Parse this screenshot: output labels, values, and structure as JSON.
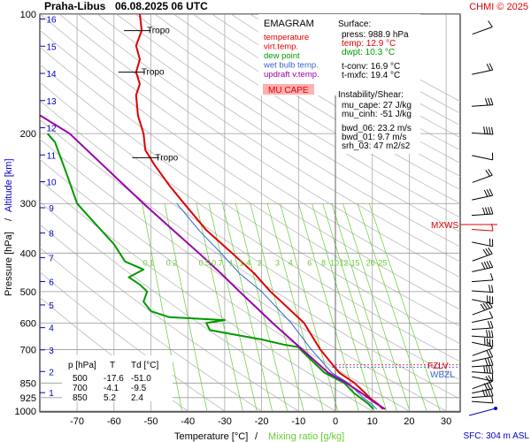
{
  "header": {
    "station": "Praha-Libus",
    "datetime": "06.08.2025 06 UTC",
    "copyright": "CHMI © 2025"
  },
  "legend": {
    "title": "EMAGRAM",
    "items": [
      {
        "label": "temperature",
        "color": "#e00000"
      },
      {
        "label": "virt.temp.",
        "color": "#e00000"
      },
      {
        "label": "dew point",
        "color": "#009900"
      },
      {
        "label": "wet bulb temp.",
        "color": "#3366cc"
      },
      {
        "label": "updraft v.temp.",
        "color": "#9900aa"
      }
    ],
    "mu_cape_badge": "MU CAPE",
    "mu_cape_color": "#ffb0b0"
  },
  "surface": {
    "title": "Surface:",
    "press": "press: 988.9 hPa",
    "temp": "temp: 12.9 °C",
    "dwpt": "dwpt: 10.3 °C",
    "tconv": "t-conv: 16.9 °C",
    "tmxfc": "t-mxfc: 19.4 °C"
  },
  "instability": {
    "title": "Instability/Shear:",
    "mu_cape": "mu_cape: 27 J/kg",
    "mu_cinh": "mu_cinh: -51 J/kg",
    "bwd_06": "bwd_06: 23.2 m/s",
    "bwd_01": "bwd_01: 9.7 m/s",
    "srh_03": "srh_03: 47 m2/s2"
  },
  "level_table": {
    "headers": [
      "p [hPa]",
      "T",
      "Td [°C]"
    ],
    "rows": [
      [
        "500",
        "-17.6",
        "-51.0"
      ],
      [
        "700",
        "-4.1",
        "-9.5"
      ],
      [
        "850",
        "5.2",
        "2.4"
      ]
    ]
  },
  "labels": {
    "tropo": "Tropo",
    "mxws": "MXWS",
    "fzlv": "FZLV",
    "wbzl": "WBZL",
    "sfc": "SFC: 304 m ASL",
    "ylabel_pressure": "Pressure [hPa]",
    "ylabel_sep": "/",
    "ylabel_altitude": "Altitude [km]",
    "xlabel_temp": "Temperature [°C]",
    "xlabel_sep": "/",
    "xlabel_mix": "Mixing ratio [g/kg]"
  },
  "colors": {
    "temperature": "#e00000",
    "dewpoint": "#009900",
    "wetbulb": "#3366cc",
    "parcel": "#9900aa",
    "mixing": "#66cc33",
    "altitude": "#0000cc",
    "dry_adiabat": "#bbbbbb",
    "isobar": "#999999"
  },
  "chart_data": {
    "type": "line",
    "xlabel": "Temperature [°C]",
    "ylabel": "Pressure [hPa]",
    "xlim": [
      -80,
      40
    ],
    "ylim": [
      1000,
      100
    ],
    "y_scale": "log",
    "x_ticks": [
      -70,
      -60,
      -50,
      -40,
      -30,
      -20,
      -10,
      0,
      10,
      20,
      30
    ],
    "y_ticks": [
      100,
      200,
      300,
      400,
      500,
      600,
      700,
      850,
      925,
      1000
    ],
    "altitude_ticks_km": [
      1,
      2,
      3,
      4,
      5,
      6,
      7,
      8,
      9,
      10,
      11,
      12,
      13,
      14,
      15,
      16
    ],
    "mixing_ratio_labels": [
      "0.1",
      "0.2",
      "0.5",
      "0.7",
      "1",
      "1.4",
      "2",
      "3",
      "4",
      "6",
      "8",
      "10",
      "12",
      "15",
      "20",
      "25"
    ],
    "series": [
      {
        "name": "temperature",
        "points": [
          [
            12.9,
            989
          ],
          [
            11.5,
            960
          ],
          [
            9.5,
            930
          ],
          [
            8.0,
            900
          ],
          [
            5.2,
            850
          ],
          [
            1.0,
            800
          ],
          [
            -4.1,
            700
          ],
          [
            -8.5,
            600
          ],
          [
            -17.6,
            500
          ],
          [
            -22.0,
            450
          ],
          [
            -28.0,
            400
          ],
          [
            -35.0,
            350
          ],
          [
            -41.0,
            300
          ],
          [
            -45.0,
            270
          ],
          [
            -49.0,
            240
          ],
          [
            -51.5,
            220
          ],
          [
            -52.0,
            200
          ],
          [
            -53.5,
            180
          ],
          [
            -54.0,
            160
          ],
          [
            -53.0,
            150
          ],
          [
            -54.0,
            140
          ],
          [
            -53.0,
            130
          ],
          [
            -54.0,
            120
          ],
          [
            -52.5,
            110
          ],
          [
            -53.0,
            100
          ]
        ]
      },
      {
        "name": "dew point",
        "points": [
          [
            10.3,
            989
          ],
          [
            9.0,
            960
          ],
          [
            7.0,
            930
          ],
          [
            5.0,
            900
          ],
          [
            2.4,
            850
          ],
          [
            -3.0,
            800
          ],
          [
            -9.5,
            700
          ],
          [
            -10.0,
            690
          ],
          [
            -14.0,
            680
          ],
          [
            -20.0,
            660
          ],
          [
            -28.0,
            640
          ],
          [
            -34.0,
            625
          ],
          [
            -35.0,
            600
          ],
          [
            -30.0,
            590
          ],
          [
            -45.0,
            580
          ],
          [
            -50.0,
            560
          ],
          [
            -52.0,
            530
          ],
          [
            -51.0,
            500
          ],
          [
            -53.0,
            480
          ],
          [
            -56.0,
            460
          ],
          [
            -52.0,
            440
          ],
          [
            -57.0,
            420
          ],
          [
            -60.0,
            380
          ],
          [
            -66.0,
            330
          ],
          [
            -70.0,
            300
          ],
          [
            -73.0,
            250
          ],
          [
            -76.0,
            210
          ],
          [
            -78.0,
            200
          ]
        ]
      },
      {
        "name": "wet bulb temp.",
        "points": [
          [
            11.2,
            989
          ],
          [
            9.8,
            960
          ],
          [
            7.8,
            930
          ],
          [
            6.2,
            900
          ],
          [
            3.5,
            850
          ],
          [
            -1.0,
            800
          ],
          [
            -6.5,
            700
          ],
          [
            -12.0,
            600
          ],
          [
            -20.0,
            500
          ],
          [
            -26.0,
            450
          ],
          [
            -31.0,
            400
          ],
          [
            -37.0,
            350
          ],
          [
            -43.0,
            300
          ]
        ]
      },
      {
        "name": "updraft v.temp.",
        "points": [
          [
            13.5,
            989
          ],
          [
            10.5,
            950
          ],
          [
            7.0,
            900
          ],
          [
            3.0,
            850
          ],
          [
            -2.0,
            800
          ],
          [
            -9.0,
            700
          ],
          [
            -17.0,
            600
          ],
          [
            -26.0,
            500
          ],
          [
            -31.0,
            450
          ],
          [
            -37.0,
            400
          ],
          [
            -44.0,
            350
          ],
          [
            -52.0,
            300
          ],
          [
            -61.0,
            250
          ],
          [
            -72.0,
            200
          ],
          [
            -80.0,
            180
          ]
        ]
      }
    ],
    "tropopause_levels_hpa": [
      110,
      140,
      230
    ],
    "fzlv_hpa": 765,
    "wbzl_hpa": 775,
    "mxws_hpa": 345
  }
}
